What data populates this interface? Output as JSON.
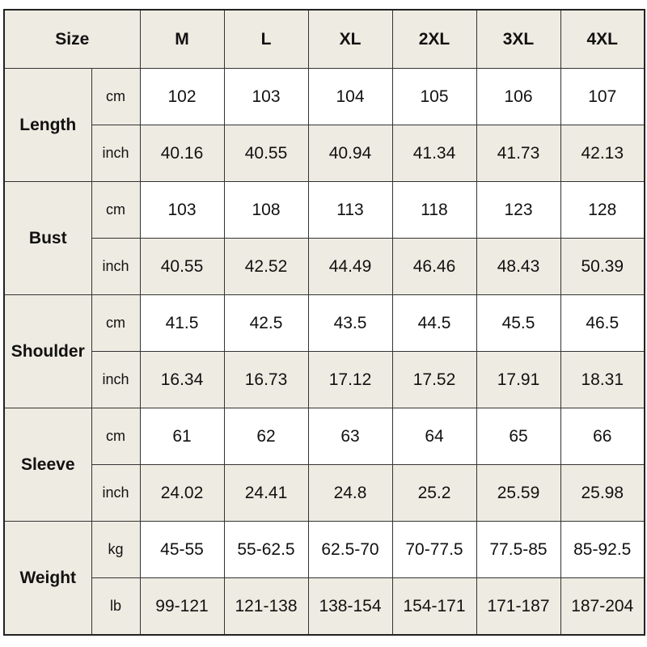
{
  "header": {
    "size_label": "Size",
    "sizes": [
      "M",
      "L",
      "XL",
      "2XL",
      "3XL",
      "4XL"
    ]
  },
  "rows": [
    {
      "label": "Length",
      "units": [
        {
          "unit": "cm",
          "values": [
            "102",
            "103",
            "104",
            "105",
            "106",
            "107"
          ]
        },
        {
          "unit": "inch",
          "values": [
            "40.16",
            "40.55",
            "40.94",
            "41.34",
            "41.73",
            "42.13"
          ]
        }
      ]
    },
    {
      "label": "Bust",
      "units": [
        {
          "unit": "cm",
          "values": [
            "103",
            "108",
            "113",
            "118",
            "123",
            "128"
          ]
        },
        {
          "unit": "inch",
          "values": [
            "40.55",
            "42.52",
            "44.49",
            "46.46",
            "48.43",
            "50.39"
          ]
        }
      ]
    },
    {
      "label": "Shoulder",
      "units": [
        {
          "unit": "cm",
          "values": [
            "41.5",
            "42.5",
            "43.5",
            "44.5",
            "45.5",
            "46.5"
          ]
        },
        {
          "unit": "inch",
          "values": [
            "16.34",
            "16.73",
            "17.12",
            "17.52",
            "17.91",
            "18.31"
          ]
        }
      ]
    },
    {
      "label": "Sleeve",
      "units": [
        {
          "unit": "cm",
          "values": [
            "61",
            "62",
            "63",
            "64",
            "65",
            "66"
          ]
        },
        {
          "unit": "inch",
          "values": [
            "24.02",
            "24.41",
            "24.8",
            "25.2",
            "25.59",
            "25.98"
          ]
        }
      ]
    },
    {
      "label": "Weight",
      "units": [
        {
          "unit": "kg",
          "values": [
            "45-55",
            "55-62.5",
            "62.5-70",
            "70-77.5",
            "77.5-85",
            "85-92.5"
          ]
        },
        {
          "unit": "lb",
          "values": [
            "99-121",
            "121-138",
            "138-154",
            "154-171",
            "171-187",
            "187-204"
          ]
        }
      ]
    }
  ]
}
